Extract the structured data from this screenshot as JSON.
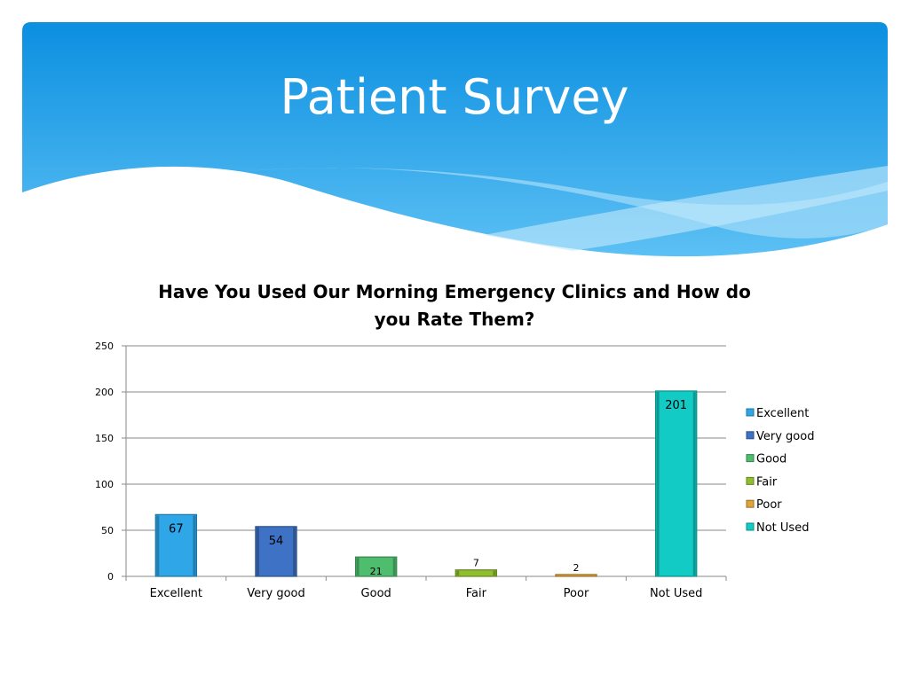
{
  "slide": {
    "title": "Patient Survey",
    "colors": {
      "header_top": "#0b8fe0",
      "header_bottom": "#4fb8f2"
    }
  },
  "chart_data": {
    "type": "bar",
    "title": "Have You Used Our Morning Emergency Clinics and How do you Rate Them?",
    "title_lines": [
      "Have You Used Our Morning Emergency Clinics and How do",
      "you Rate Them?"
    ],
    "categories": [
      "Excellent",
      "Very good",
      "Good",
      "Fair",
      "Poor",
      "Not Used"
    ],
    "values": [
      67,
      54,
      21,
      7,
      2,
      201
    ],
    "data_labels": [
      "67",
      "54",
      "21",
      "7",
      "2",
      "201"
    ],
    "colors": [
      "#2ea6e8",
      "#3e72c4",
      "#4fbd6e",
      "#8fbf2e",
      "#e0a33a",
      "#12cbc4"
    ],
    "ylim": [
      0,
      250
    ],
    "yticks": [
      0,
      50,
      100,
      150,
      200,
      250
    ],
    "grid": true,
    "legend_position": "right",
    "legend": [
      "Excellent",
      "Very good",
      "Good",
      "Fair",
      "Poor",
      "Not Used"
    ]
  }
}
